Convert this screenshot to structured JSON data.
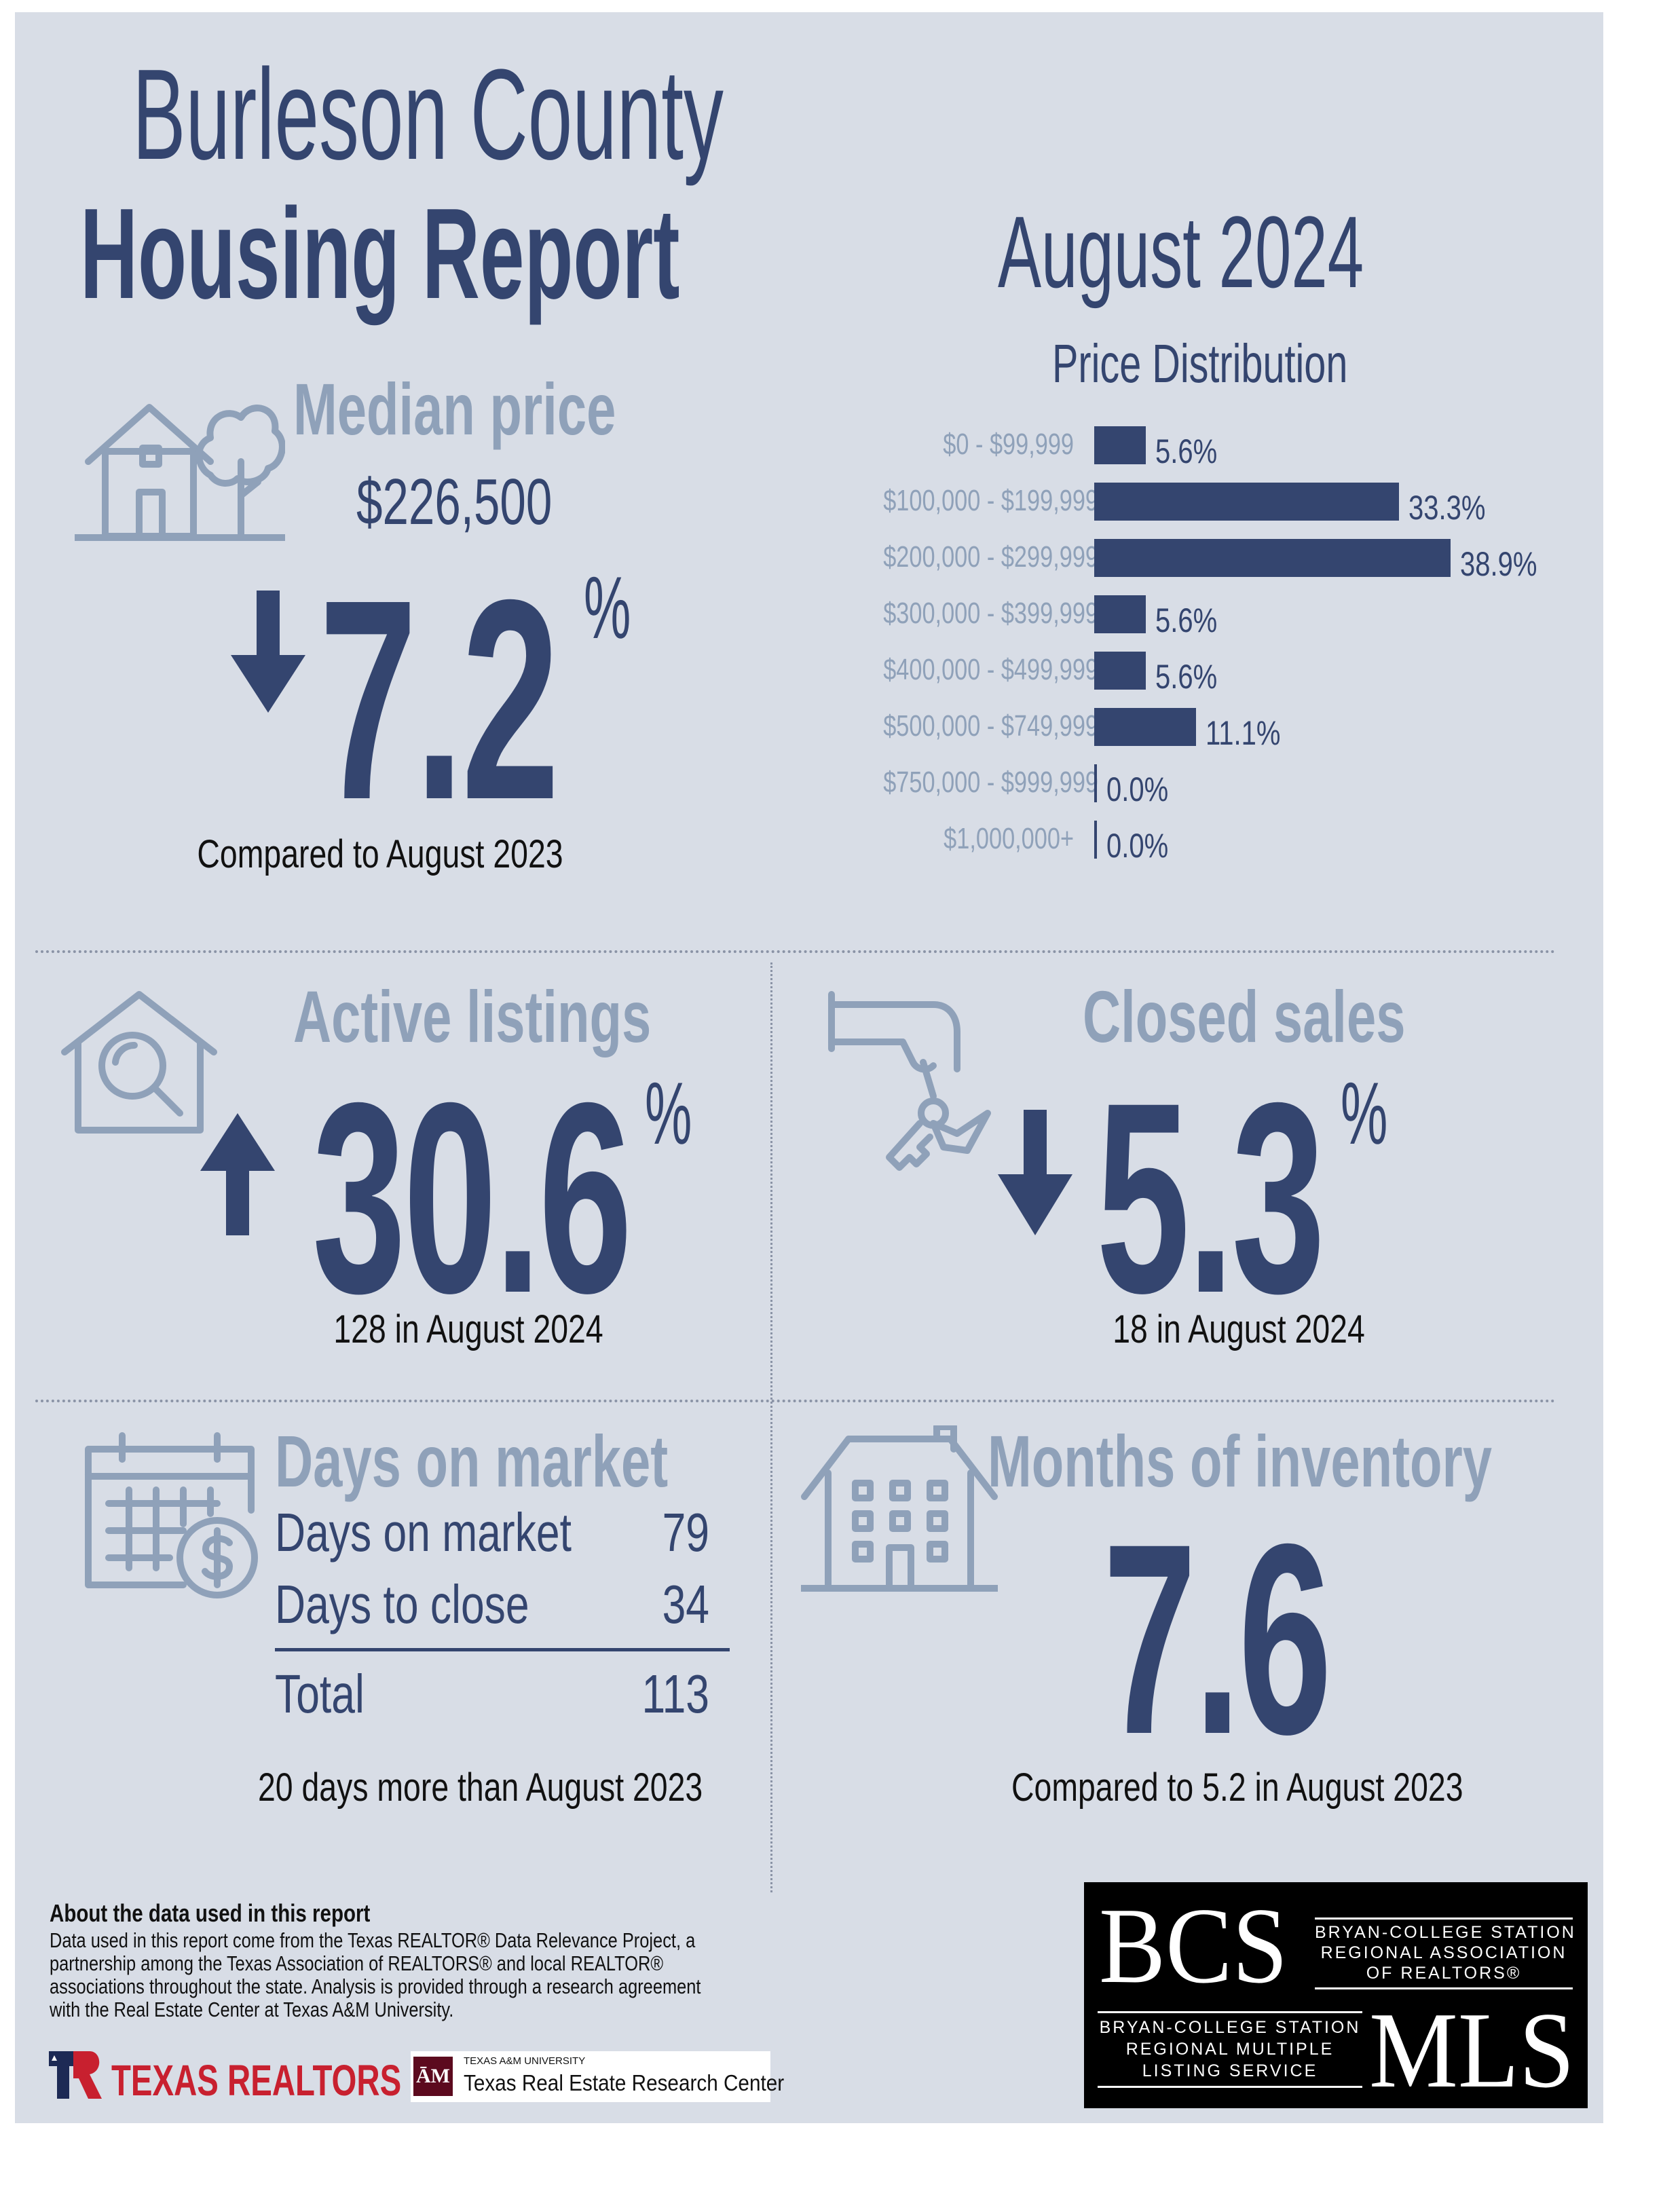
{
  "header": {
    "title_line1": "Burleson County",
    "title_line2": "Housing Report",
    "period": "August 2024"
  },
  "median_price": {
    "heading": "Median price",
    "value": "$226,500",
    "change": "7.2",
    "percent_sign": "%",
    "direction": "down",
    "caption": "Compared to August 2023"
  },
  "price_distribution": {
    "title": "Price Distribution",
    "chart_data": {
      "type": "bar",
      "categories": [
        "$0 - $99,999",
        "$100,000 - $199,999",
        "$200,000 - $299,999",
        "$300,000 - $399,999",
        "$400,000 - $499,999",
        "$500,000 - $749,999",
        "$750,000 - $999,999",
        "$1,000,000+"
      ],
      "values": [
        5.6,
        33.3,
        38.9,
        5.6,
        5.6,
        11.1,
        0.0,
        0.0
      ],
      "value_labels": [
        "5.6%",
        "33.3%",
        "38.9%",
        "5.6%",
        "5.6%",
        "11.1%",
        "0.0%",
        "0.0%"
      ],
      "title": "Price Distribution",
      "orientation": "horizontal",
      "bar_color": "#34456f"
    }
  },
  "active_listings": {
    "heading": "Active listings",
    "change": "30.6",
    "percent_sign": "%",
    "direction": "up",
    "caption": "128 in August 2024"
  },
  "closed_sales": {
    "heading": "Closed sales",
    "change": "5.3",
    "percent_sign": "%",
    "direction": "down",
    "caption": "18 in August 2024"
  },
  "days_on_market": {
    "heading": "Days on market",
    "rows": [
      {
        "label": "Days on market",
        "value": "79"
      },
      {
        "label": "Days to close",
        "value": "34"
      }
    ],
    "total_label": "Total",
    "total_value": "113",
    "caption": "20 days more than August 2023"
  },
  "months_inventory": {
    "heading": "Months of inventory",
    "value": "7.6",
    "caption": "Compared to 5.2 in August 2023"
  },
  "about": {
    "title": "About the data used in this report",
    "body": "Data used in this report come from the Texas REALTOR® Data Relevance Project, a\npartnership among the Texas Association of REALTORS® and local REALTOR®\nassociations throughout the state. Analysis is provided through a research agreement\nwith the Real Estate Center at Texas A&M University."
  },
  "logos": {
    "texas_realtors": "TEXAS REALTORS",
    "tamu_small": "TEXAS A&M UNIVERSITY",
    "tamu_center": "Texas Real Estate Research Center",
    "bcs_mark": "BCS",
    "bcs_assoc_line1": "BRYAN-COLLEGE STATION",
    "bcs_assoc_line2": "REGIONAL ASSOCIATION",
    "bcs_assoc_line3": "OF REALTORS®",
    "mls_line1": "BRYAN-COLLEGE STATION",
    "mls_line2": "REGIONAL MULTIPLE",
    "mls_line3": "LISTING SERVICE",
    "mls_mark": "MLS"
  },
  "colors": {
    "navy": "#34456f",
    "muted": "#8fa1b9",
    "panel": "#d8dde6",
    "brand_red": "#c8202f"
  }
}
